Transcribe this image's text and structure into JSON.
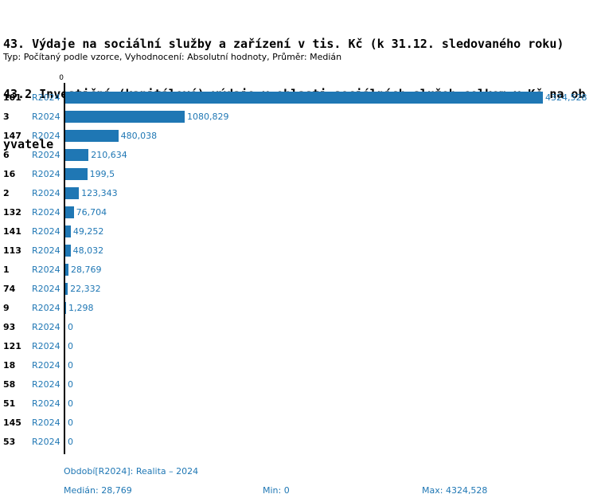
{
  "header": {
    "title_lines": [
      "43. Výdaje na sociální služby a zařízení v tis. Kč (k 31.12. sledovaného roku)",
      "43.2 Investiční (kapitálové) výdaje v oblasti sociálních služeb celkem v Kč na ob",
      "yvatele"
    ],
    "subtitle": "Typ: Počítaný podle vzorce, Vyhodnocení: Absolutní hodnoty, Průměr: Medián"
  },
  "chart_data": {
    "type": "bar",
    "orientation": "horizontal",
    "title": "43. Výdaje na sociální služby a zařízení v tis. Kč (k 31.12. sledovaného roku) — 43.2 Investiční (kapitálové) výdaje v oblasti sociálních služeb celkem v Kč na obyvatele",
    "series_label": "R2024",
    "axis_origin_label": "0",
    "categories": [
      "101",
      "3",
      "147",
      "6",
      "16",
      "2",
      "132",
      "141",
      "113",
      "1",
      "74",
      "9",
      "93",
      "121",
      "18",
      "58",
      "51",
      "145",
      "53"
    ],
    "values": [
      4324.528,
      1080.829,
      480.038,
      210.634,
      199.5,
      123.343,
      76.704,
      49.252,
      48.032,
      28.769,
      22.332,
      1.298,
      0,
      0,
      0,
      0,
      0,
      0,
      0
    ],
    "value_labels": [
      "4324,528",
      "1080,829",
      "480,038",
      "210,634",
      "199,5",
      "123,343",
      "76,704",
      "49,252",
      "48,032",
      "28,769",
      "22,332",
      "1,298",
      "0",
      "0",
      "0",
      "0",
      "0",
      "0",
      "0"
    ],
    "xlim": [
      0,
      4324.528
    ],
    "grid": false,
    "legend_position": "none",
    "bar_color": "#1f77b4",
    "label_color": "#1f77b4"
  },
  "footer": {
    "period": "Období[R2024]: Realita – 2024",
    "median": "Medián: 28,769",
    "min": "Min: 0",
    "max": "Max: 4324,528"
  }
}
